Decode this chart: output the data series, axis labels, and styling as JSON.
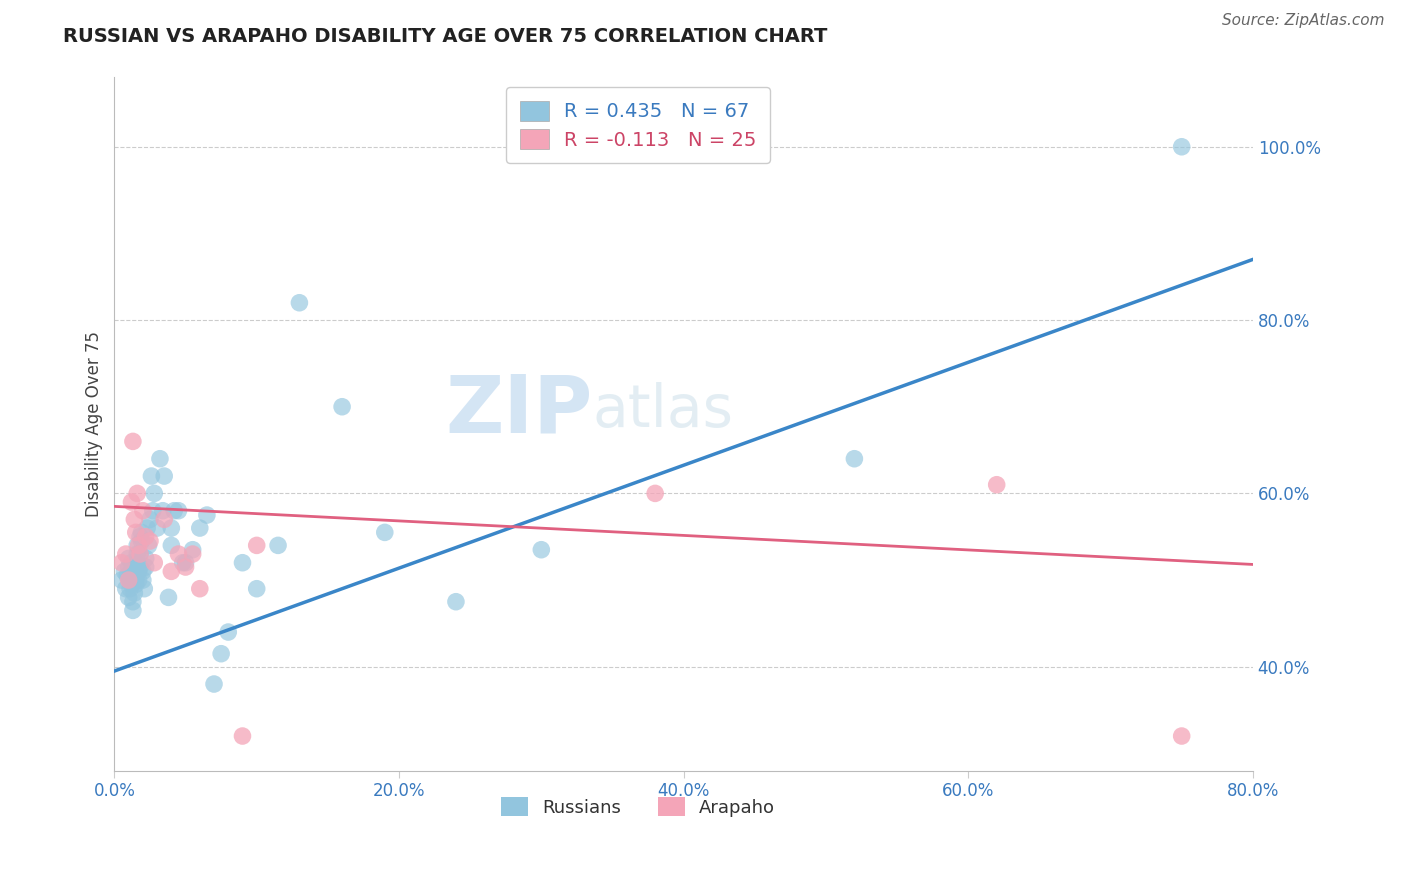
{
  "title": "RUSSIAN VS ARAPAHO DISABILITY AGE OVER 75 CORRELATION CHART",
  "source": "Source: ZipAtlas.com",
  "ylabel": "Disability Age Over 75",
  "xlim": [
    0.0,
    0.8
  ],
  "ylim": [
    0.28,
    1.08
  ],
  "russian_R": 0.435,
  "russian_N": 67,
  "arapaho_R": -0.113,
  "arapaho_N": 25,
  "russian_color": "#92c5de",
  "arapaho_color": "#f4a5b8",
  "russian_line_color": "#3a86c8",
  "arapaho_line_color": "#e06080",
  "watermark_zip": "ZIP",
  "watermark_atlas": "atlas",
  "background_color": "#ffffff",
  "russian_line_x0": 0.0,
  "russian_line_y0": 0.395,
  "russian_line_x1": 0.8,
  "russian_line_y1": 0.87,
  "arapaho_line_x0": 0.0,
  "arapaho_line_y0": 0.585,
  "arapaho_line_x1": 0.8,
  "arapaho_line_y1": 0.518,
  "russian_x": [
    0.005,
    0.007,
    0.008,
    0.009,
    0.01,
    0.01,
    0.01,
    0.011,
    0.011,
    0.012,
    0.012,
    0.012,
    0.013,
    0.013,
    0.014,
    0.014,
    0.015,
    0.015,
    0.015,
    0.015,
    0.016,
    0.016,
    0.017,
    0.017,
    0.018,
    0.018,
    0.018,
    0.019,
    0.019,
    0.02,
    0.02,
    0.021,
    0.022,
    0.022,
    0.023,
    0.024,
    0.025,
    0.026,
    0.027,
    0.028,
    0.03,
    0.032,
    0.034,
    0.035,
    0.038,
    0.04,
    0.04,
    0.042,
    0.045,
    0.048,
    0.05,
    0.055,
    0.06,
    0.065,
    0.07,
    0.075,
    0.08,
    0.09,
    0.1,
    0.115,
    0.13,
    0.16,
    0.19,
    0.24,
    0.3,
    0.52,
    0.75
  ],
  "russian_y": [
    0.5,
    0.51,
    0.49,
    0.505,
    0.48,
    0.515,
    0.525,
    0.5,
    0.49,
    0.495,
    0.51,
    0.52,
    0.475,
    0.465,
    0.485,
    0.505,
    0.5,
    0.495,
    0.51,
    0.52,
    0.53,
    0.54,
    0.51,
    0.5,
    0.55,
    0.53,
    0.515,
    0.545,
    0.555,
    0.5,
    0.51,
    0.49,
    0.515,
    0.525,
    0.56,
    0.54,
    0.57,
    0.62,
    0.58,
    0.6,
    0.56,
    0.64,
    0.58,
    0.62,
    0.48,
    0.54,
    0.56,
    0.58,
    0.58,
    0.52,
    0.52,
    0.535,
    0.56,
    0.575,
    0.38,
    0.415,
    0.44,
    0.52,
    0.49,
    0.54,
    0.82,
    0.7,
    0.555,
    0.475,
    0.535,
    0.64,
    1.0
  ],
  "arapaho_x": [
    0.005,
    0.008,
    0.01,
    0.012,
    0.013,
    0.014,
    0.015,
    0.016,
    0.017,
    0.018,
    0.02,
    0.022,
    0.025,
    0.028,
    0.035,
    0.04,
    0.045,
    0.05,
    0.055,
    0.06,
    0.09,
    0.1,
    0.38,
    0.62,
    0.75
  ],
  "arapaho_y": [
    0.52,
    0.53,
    0.5,
    0.59,
    0.66,
    0.57,
    0.555,
    0.6,
    0.54,
    0.53,
    0.58,
    0.55,
    0.545,
    0.52,
    0.57,
    0.51,
    0.53,
    0.515,
    0.53,
    0.49,
    0.32,
    0.54,
    0.6,
    0.61,
    0.32
  ]
}
